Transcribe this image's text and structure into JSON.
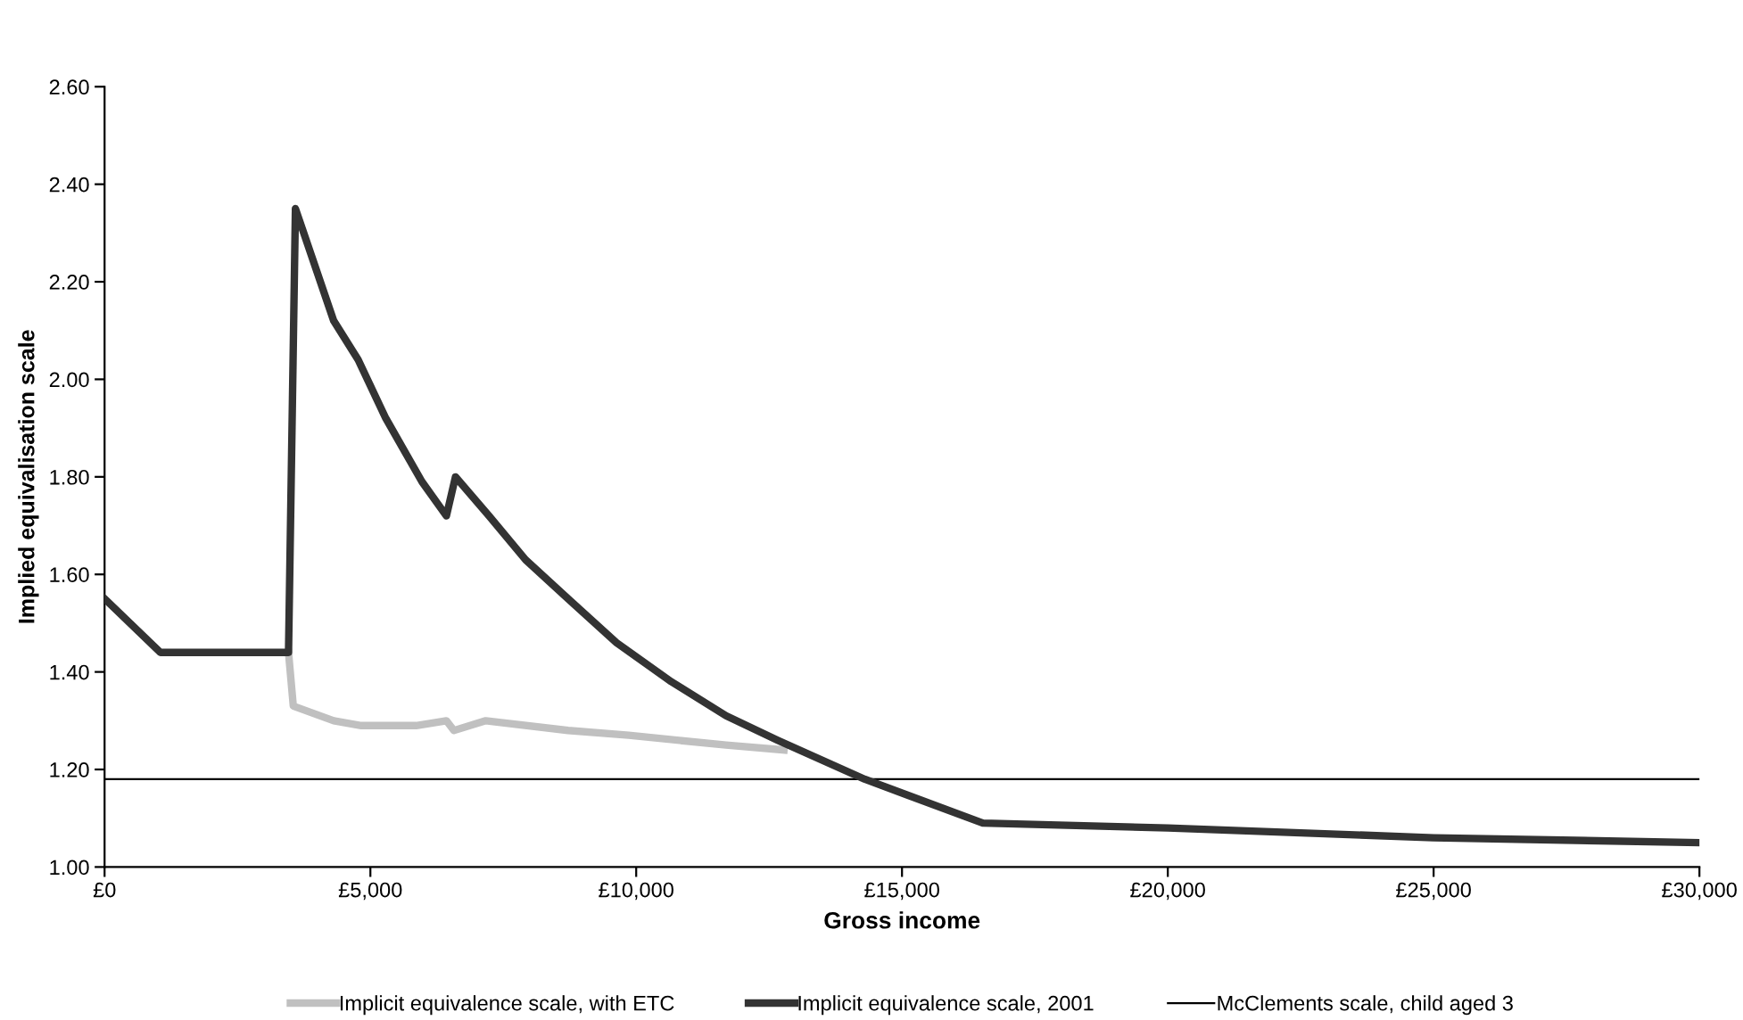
{
  "chart_data": {
    "type": "line",
    "xlabel": "Gross income",
    "ylabel": "Implied equivalisation scale",
    "xlim": [
      0,
      30000
    ],
    "ylim": [
      1.0,
      2.6
    ],
    "xticks": [
      {
        "value": 0,
        "label": "£0"
      },
      {
        "value": 5000,
        "label": "£5,000"
      },
      {
        "value": 10000,
        "label": "£10,000"
      },
      {
        "value": 15000,
        "label": "£15,000"
      },
      {
        "value": 20000,
        "label": "£20,000"
      },
      {
        "value": 25000,
        "label": "£25,000"
      },
      {
        "value": 30000,
        "label": "£30,000"
      }
    ],
    "yticks": [
      {
        "value": 1.0,
        "label": "1.00"
      },
      {
        "value": 1.2,
        "label": "1.20"
      },
      {
        "value": 1.4,
        "label": "1.40"
      },
      {
        "value": 1.6,
        "label": "1.60"
      },
      {
        "value": 1.8,
        "label": "1.80"
      },
      {
        "value": 2.0,
        "label": "2.00"
      },
      {
        "value": 2.2,
        "label": "2.20"
      },
      {
        "value": 2.4,
        "label": "2.40"
      },
      {
        "value": 2.6,
        "label": "2.60"
      }
    ],
    "grid": false,
    "legend": "bottom",
    "marker": "none",
    "line_style": "solid",
    "series": [
      {
        "name": "Implicit equivalence scale, with ETC",
        "color": "#c0c0c0",
        "x": [
          3460,
          3550,
          4310,
          4830,
          5860,
          6430,
          6570,
          7170,
          8720,
          9860,
          11690,
          12780
        ],
        "values": [
          1.44,
          1.33,
          1.3,
          1.29,
          1.29,
          1.3,
          1.28,
          1.3,
          1.28,
          1.27,
          1.25,
          1.24
        ]
      },
      {
        "name": "Implicit equivalence scale, 2001",
        "color": "#333333",
        "x": [
          0,
          1050,
          3460,
          3590,
          4310,
          4770,
          5290,
          5970,
          6430,
          6600,
          7230,
          7920,
          8720,
          9630,
          10660,
          11690,
          12660,
          14300,
          16520,
          20000,
          25000,
          30000
        ],
        "values": [
          1.55,
          1.44,
          1.44,
          2.35,
          2.12,
          2.04,
          1.92,
          1.79,
          1.72,
          1.8,
          1.72,
          1.63,
          1.55,
          1.46,
          1.38,
          1.31,
          1.26,
          1.18,
          1.09,
          1.08,
          1.06,
          1.05
        ]
      },
      {
        "name": "McClements scale, child aged 3",
        "color": "#000000",
        "x": [
          0,
          30000
        ],
        "values": [
          1.18,
          1.18
        ]
      }
    ]
  }
}
